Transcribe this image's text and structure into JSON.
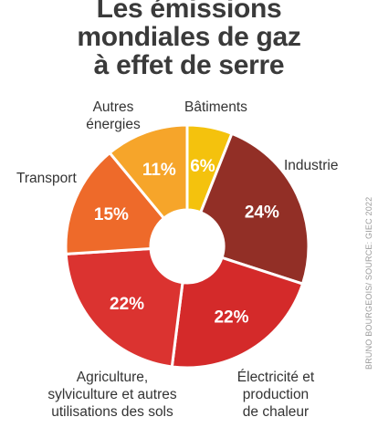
{
  "chart_data": {
    "type": "pie",
    "donut": true,
    "title_lines": [
      "Les émissions",
      "mondiales de gaz",
      "à effet de serre"
    ],
    "unit": "%",
    "slices": [
      {
        "label": "Bâtiments",
        "value": 6,
        "display": "6%",
        "color": "#f4c20d"
      },
      {
        "label": "Industrie",
        "value": 24,
        "display": "24%",
        "color": "#922f26"
      },
      {
        "label": "Électricité et\nproduction\nde chaleur",
        "value": 22,
        "display": "22%",
        "color": "#d42a2a"
      },
      {
        "label": "Agriculture,\nsylviculture et autres\nutilisations des sols",
        "value": 22,
        "display": "22%",
        "color": "#db3330"
      },
      {
        "label": "Transport",
        "value": 15,
        "display": "15%",
        "color": "#ee6a2a"
      },
      {
        "label": "Autres\nénergies",
        "value": 11,
        "display": "11%",
        "color": "#f6a52a"
      }
    ]
  },
  "credit": "BRUNO BOURGEOIS/ SOURCE: GIEC 2022"
}
